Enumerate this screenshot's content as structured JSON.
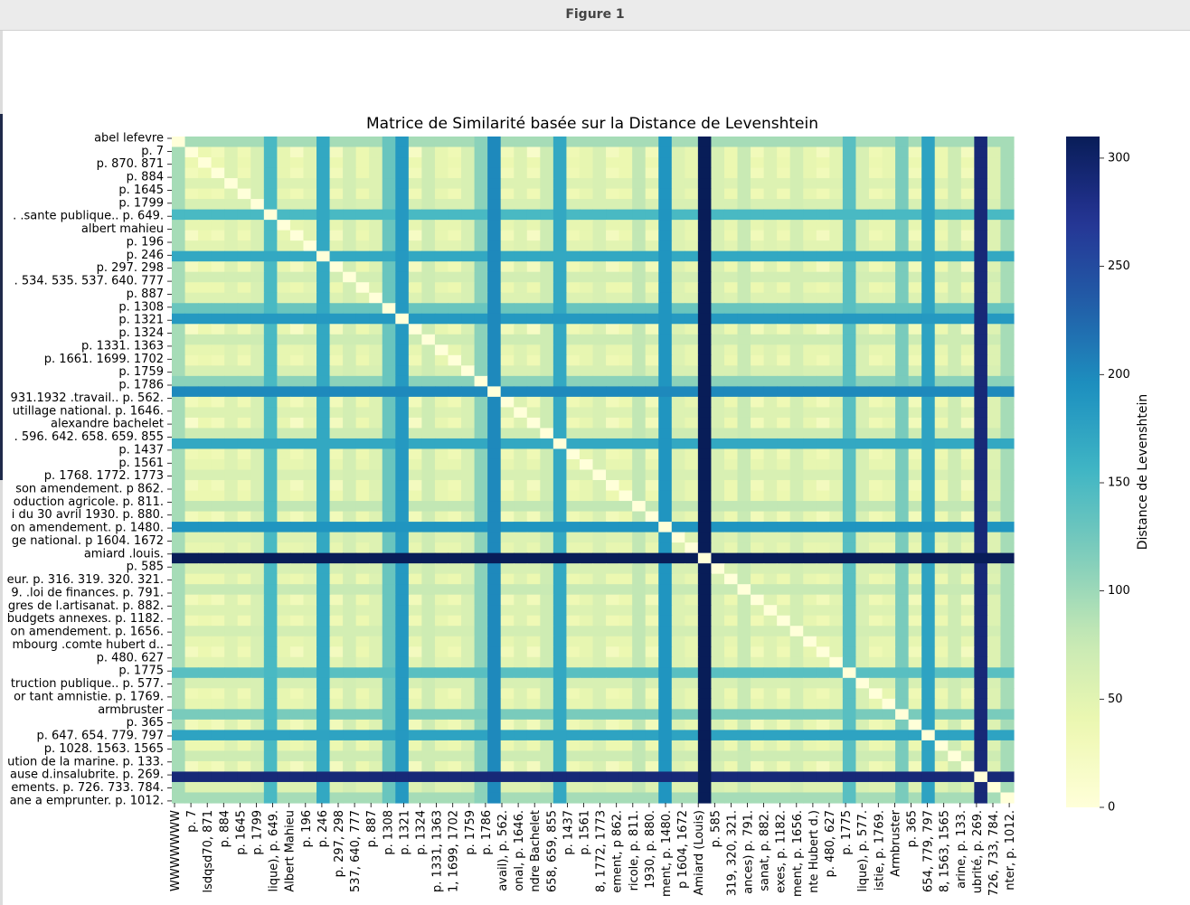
{
  "window": {
    "title": "Figure 1"
  },
  "chart_data": {
    "type": "heatmap",
    "title": "Matrice de Similarité basée sur la Distance de Levenshtein",
    "colorbar": {
      "label": "Distance de Levenshtein",
      "ticks": [
        0,
        50,
        100,
        150,
        200,
        250,
        300
      ],
      "min": 0,
      "max": 310,
      "colormap": [
        "#ffffd9",
        "#edf8b1",
        "#c7e9b4",
        "#7fcdbb",
        "#41b6c4",
        "#1d91c0",
        "#225ea8",
        "#253494",
        "#081d58"
      ]
    },
    "cell_count": 64,
    "row_labels_visible": [
      "abel lefevre",
      "p. 7",
      "p. 870. 871",
      "p. 884",
      "p. 1645",
      "p. 1799",
      ". .sante publique.. p. 649.",
      "albert mahieu",
      "p. 196",
      "p. 246",
      "p. 297. 298",
      ". 534. 535. 537. 640. 777",
      "p. 887",
      "p. 1308",
      "p. 1321",
      "p. 1324",
      "p. 1331. 1363",
      "p. 1661. 1699. 1702",
      "p. 1759",
      "p. 1786",
      "931.1932 .travail.. p. 562.",
      "utillage national. p. 1646.",
      "alexandre bachelet",
      ". 596. 642. 658. 659. 855",
      "p. 1437",
      "p. 1561",
      "p. 1768. 1772. 1773",
      "son amendement. p 862.",
      "oduction agricole. p. 811.",
      "i du 30 avril 1930. p. 880.",
      "on amendement. p. 1480.",
      "ge national. p 1604. 1672",
      "amiard .louis.",
      "p. 585",
      "eur. p. 316. 319. 320. 321.",
      "9. .loi de finances. p. 791.",
      "gres de l.artisanat. p. 882.",
      "budgets annexes. p. 1182.",
      "on amendement. p. 1656.",
      "mbourg .comte hubert d..",
      "p. 480. 627",
      "p. 1775",
      "truction publique.. p. 577.",
      "or tant amnistie. p. 1769.",
      "armbruster",
      "p. 365",
      "p. 647. 654. 779. 797",
      "p. 1028. 1563. 1565",
      "ution de la marine. p. 133.",
      "ause d.insalubrite. p. 269.",
      "ements. p. 726. 733. 784.",
      "ane a emprunter. p. 1012."
    ],
    "column_labels_visible": [
      "WWWWWWW",
      "p. 7",
      "lsdqsd70, 871",
      "p. 884",
      "p. 1645",
      "p. 1799",
      "lique), p. 649.",
      "Albert Mahieu",
      "p. 196",
      "p. 246",
      "p. 297, 298",
      "537, 640, 777",
      "p. 887",
      "p. 1308",
      "p. 1321",
      "p. 1324",
      "p. 1331, 1363",
      "1, 1699, 1702",
      "p. 1759",
      "p. 1786",
      "avail), p. 562.",
      "onal, p. 1646.",
      "ndre Bachelet",
      "658, 659, 855",
      "p. 1437",
      "p. 1561",
      "8, 1772, 1773",
      "ement, p 862.",
      "ricole, p. 811.",
      "1930, p. 880.",
      "ment, p. 1480.",
      "p 1604, 1672",
      "Amiard (Louis)",
      "p. 585",
      "319, 320, 321.",
      "ances) p. 791.",
      "sanat, p. 882.",
      "exes, p. 1182.",
      "ment, p. 1656.",
      "nte Hubert d.)",
      "p. 480, 627",
      "p. 1775",
      "lique), p. 577.",
      "istie, p. 1769.",
      "Armbruster",
      "p. 365",
      "654, 779, 797",
      "8, 1563, 1565",
      "arine, p. 133.",
      "ubrité, p. 269.",
      "726, 733, 784.",
      "nter, p. 1012."
    ],
    "row_base_distance": [
      95,
      15,
      40,
      30,
      55,
      35,
      60,
      150,
      45,
      20,
      50,
      170,
      25,
      65,
      40,
      55,
      130,
      185,
      20,
      70,
      45,
      35,
      60,
      110,
      200,
      30,
      55,
      15,
      70,
      170,
      35,
      45,
      60,
      25,
      40,
      80,
      30,
      190,
      55,
      45,
      310,
      60,
      40,
      75,
      30,
      55,
      35,
      65,
      45,
      25,
      50,
      140,
      60,
      35,
      45,
      120,
      30,
      175,
      40,
      70,
      25,
      290,
      55,
      95
    ]
  }
}
